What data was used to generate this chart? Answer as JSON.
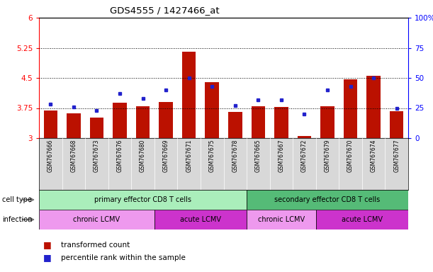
{
  "title": "GDS4555 / 1427466_at",
  "samples": [
    "GSM767666",
    "GSM767668",
    "GSM767673",
    "GSM767676",
    "GSM767680",
    "GSM767669",
    "GSM767671",
    "GSM767675",
    "GSM767678",
    "GSM767665",
    "GSM767667",
    "GSM767672",
    "GSM767679",
    "GSM767670",
    "GSM767674",
    "GSM767677"
  ],
  "red_values": [
    3.68,
    3.62,
    3.52,
    3.88,
    3.8,
    3.9,
    5.15,
    4.4,
    3.65,
    3.8,
    3.78,
    3.05,
    3.8,
    4.47,
    4.55,
    3.67
  ],
  "blue_values": [
    28,
    26,
    23,
    37,
    33,
    40,
    50,
    43,
    27,
    32,
    32,
    20,
    40,
    43,
    50,
    25
  ],
  "ymin": 3.0,
  "ymax": 6.0,
  "yticks": [
    3.0,
    3.75,
    4.5,
    5.25,
    6.0
  ],
  "ytick_labels": [
    "3",
    "3.75",
    "4.5",
    "5.25",
    "6"
  ],
  "y2min": 0,
  "y2max": 100,
  "y2ticks": [
    0,
    25,
    50,
    75,
    100
  ],
  "y2tick_labels": [
    "0",
    "25",
    "50",
    "75",
    "100%"
  ],
  "hlines": [
    3.75,
    4.5,
    5.25
  ],
  "bar_color": "#bb1100",
  "dot_color": "#2222cc",
  "cell_type_primary": "primary effector CD8 T cells",
  "cell_type_secondary": "secondary effector CD8 T cells",
  "cell_type_primary_color": "#aaeebb",
  "cell_type_secondary_color": "#55bb77",
  "infection_chronic_color": "#ee99ee",
  "infection_acute_color": "#cc33cc",
  "legend_red": "transformed count",
  "legend_blue": "percentile rank within the sample",
  "label_color_cell": "cell type",
  "label_color_inf": "infection"
}
